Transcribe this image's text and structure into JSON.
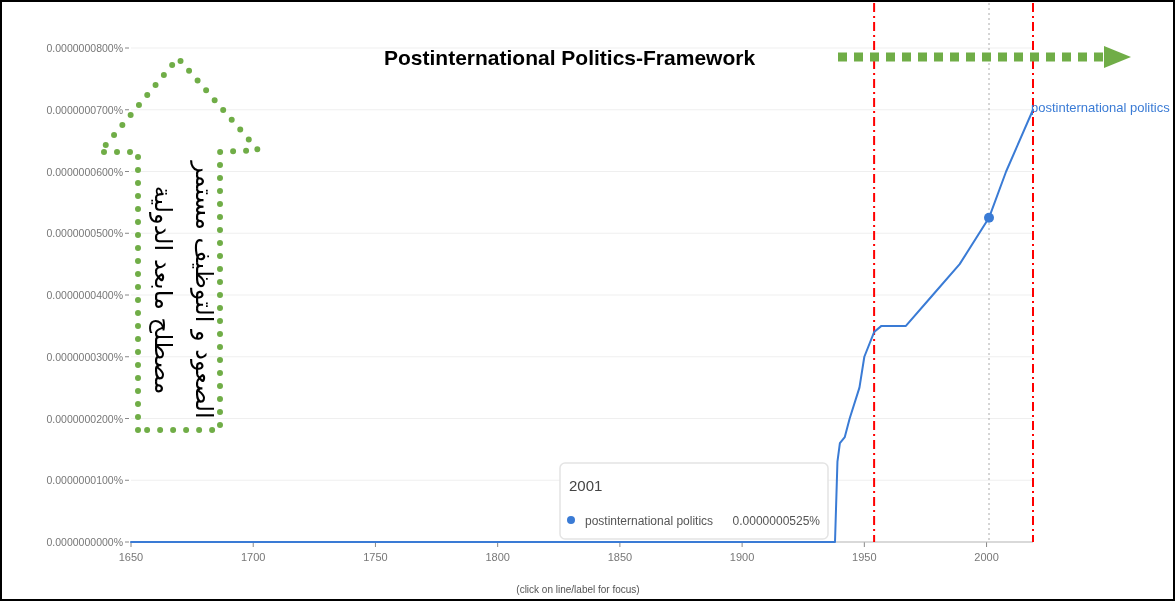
{
  "chart_data": {
    "type": "line",
    "title": "Postinternational Politics-Framework",
    "x": [
      1650,
      1938,
      1939,
      1940,
      1942,
      1944,
      1948,
      1950,
      1954,
      1957,
      1967,
      1978,
      1989,
      2001,
      2008,
      2019
    ],
    "series": [
      {
        "name": "postinternational politics",
        "color": "#3a7bd5",
        "values": [
          0,
          0,
          1.3e-08,
          1.6e-08,
          1.7e-08,
          2e-08,
          2.5e-08,
          3e-08,
          3.4e-08,
          3.5e-08,
          3.5e-08,
          4e-08,
          4.5e-08,
          5.25e-08,
          6e-08,
          7e-08
        ]
      }
    ],
    "xlim": [
      1650,
      2019
    ],
    "xticks": [
      1650,
      1700,
      1750,
      1800,
      1850,
      1900,
      1950,
      2000
    ],
    "ylim": [
      0,
      8e-08
    ],
    "yticks": [
      {
        "value": 0,
        "label": "0.0000000000%"
      },
      {
        "value": 1e-08,
        "label": "0.0000000100%"
      },
      {
        "value": 2e-08,
        "label": "0.0000000200%"
      },
      {
        "value": 3e-08,
        "label": "0.0000000300%"
      },
      {
        "value": 4e-08,
        "label": "0.0000000400%"
      },
      {
        "value": 5e-08,
        "label": "0.0000000500%"
      },
      {
        "value": 6e-08,
        "label": "0.0000000600%"
      },
      {
        "value": 7e-08,
        "label": "0.0000000700%"
      },
      {
        "value": 8e-08,
        "label": "0.0000000800%"
      }
    ],
    "grid": "y",
    "marker": "none",
    "ref_lines": [
      {
        "axis": "x",
        "value": 1954,
        "color": "#ff0000",
        "line_style": "dashdot"
      },
      {
        "axis": "x",
        "value": 2019,
        "color": "#ff0000",
        "line_style": "dashdot"
      },
      {
        "axis": "x",
        "value": 2001,
        "color": "#aaaaaa",
        "line_style": "dotted"
      }
    ],
    "annotations": [
      "2001",
      "0.0000000525%",
      "الصعود و التوظيف مستمر",
      "مصطلح مابعد الدولية",
      "(click on line/label for focus)"
    ]
  }
}
